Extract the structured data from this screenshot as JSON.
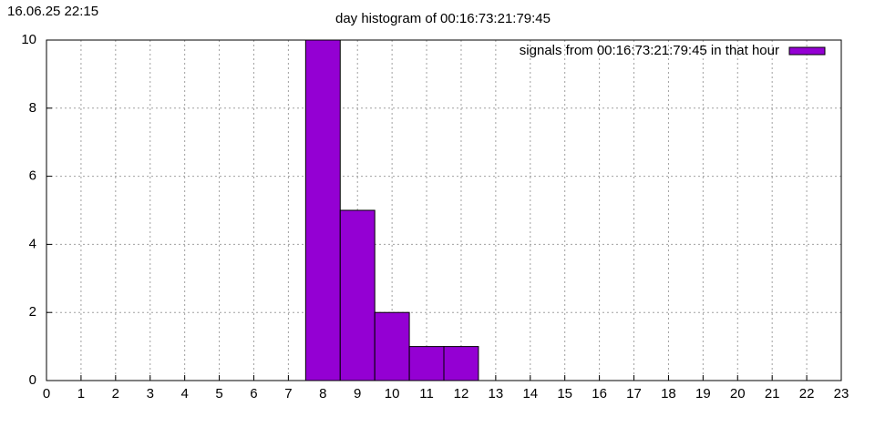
{
  "chart_data": {
    "type": "bar",
    "title": "day histogram of 00:16:73:21:79:45",
    "timestamp": "16.06.25 22:15",
    "x": [
      8,
      9,
      10,
      11,
      12
    ],
    "series": [
      {
        "name": "signals from 00:16:73:21:79:45 in that hour",
        "color": "#9400d3",
        "values": [
          10,
          5,
          2,
          1,
          1
        ]
      }
    ],
    "xlim": [
      0,
      23
    ],
    "xticks": [
      0,
      1,
      2,
      3,
      4,
      5,
      6,
      7,
      8,
      9,
      10,
      11,
      12,
      13,
      14,
      15,
      16,
      17,
      18,
      19,
      20,
      21,
      22,
      23
    ],
    "ylim": [
      0,
      10
    ],
    "yticks": [
      0,
      2,
      4,
      6,
      8,
      10
    ],
    "grid": true,
    "legend_position": "top-right"
  }
}
